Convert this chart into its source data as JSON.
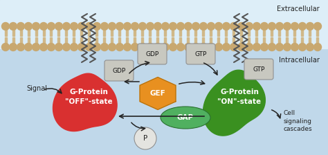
{
  "bg_top_color": "#d6eaf5",
  "bg_bottom_color": "#b8d8ea",
  "extracellular_label": "Extracellular",
  "intracellular_label": "Intracellular",
  "signal_label": "Signal",
  "cell_signaling_label": "Cell\nsignaling\ncascades",
  "g_off_label": "G-Protein\n\"OFF\"-state",
  "g_on_label": "G-Protein\n\"ON\"-state",
  "gef_label": "GEF",
  "gap_label": "GAP",
  "gdp_label": "GDP",
  "gtp_label": "GTP",
  "p_label": "P",
  "g_off_color": "#d93030",
  "g_on_color": "#3a9020",
  "gef_color": "#e89020",
  "gap_color": "#50b060",
  "nuc_facecolor": "#c8c8c0",
  "nuc_edgecolor": "#909090",
  "membrane_bead": "#c8a870",
  "membrane_tail": "#d0b888",
  "zigzag_color": "#555555",
  "arrow_color": "#222222",
  "text_color": "#222222"
}
